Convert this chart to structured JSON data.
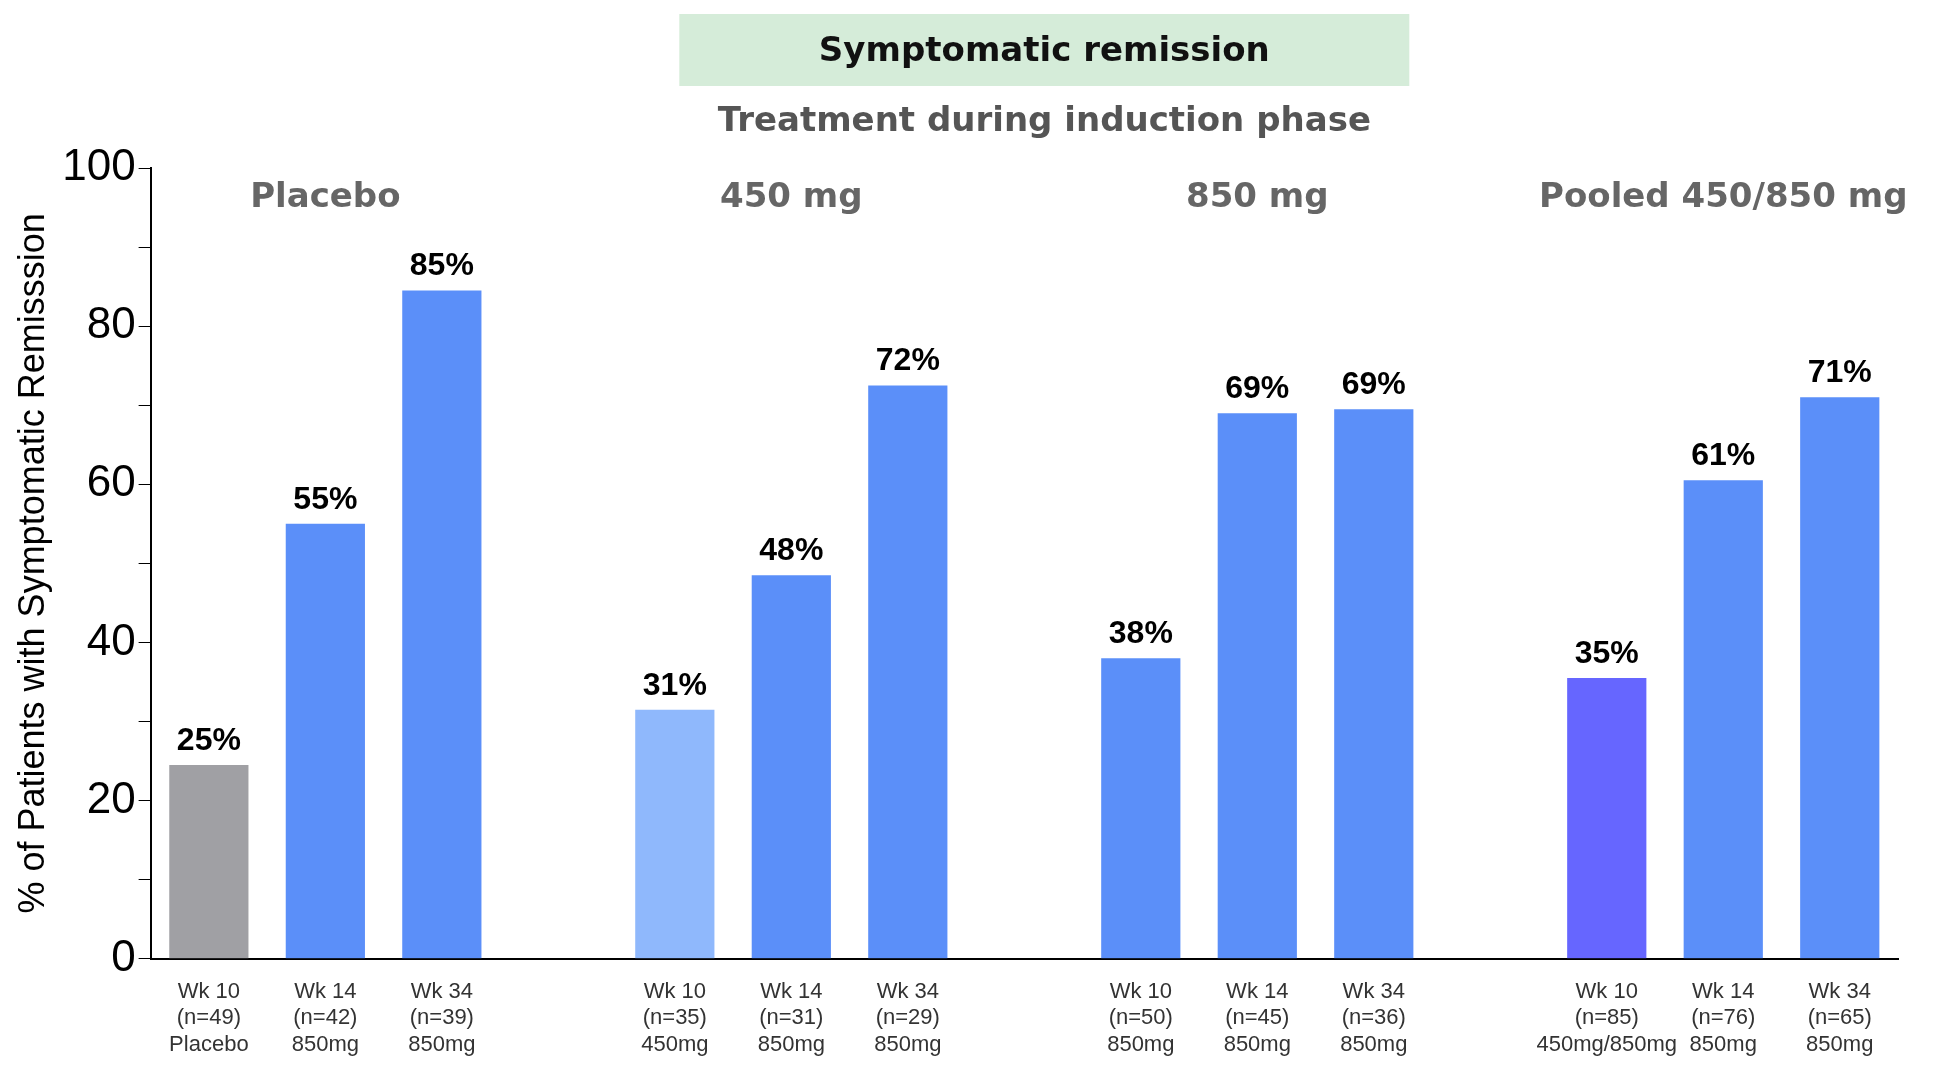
{
  "chart_data": {
    "type": "bar",
    "title": "Symptomatic remission",
    "subtitle": "Treatment during induction phase",
    "ylabel": "% of Patients with Symptomatic Remisssion",
    "annotations": [
      "Placebo",
      "450 mg",
      "850 mg",
      "Pooled 450/850 mg"
    ],
    "categories": [
      "Wk 10\n(n=49)\nPlacebo",
      "Wk 14\n(n=42)\n850mg",
      "Wk 34\n(n=39)\n850mg",
      null,
      "Wk 10\n(n=35)\n450mg",
      "Wk 14\n(n=31)\n850mg",
      "Wk 34\n(n=29)\n850mg",
      null,
      "Wk 10\n(n=50)\n850mg",
      "Wk 14\n(n=45)\n850mg",
      "Wk 34\n(n=36)\n850mg",
      null,
      "Wk 10\n(n=85)\n450mg/850mg",
      "Wk 14\n(n=76)\n850mg",
      "Wk 34\n(n=65)\n850mg"
    ],
    "values": [
      24.5,
      55,
      84.5,
      null,
      31.5,
      48.5,
      72.5,
      null,
      38,
      69,
      69.5,
      null,
      35.5,
      60.5,
      71
    ],
    "value_labels": [
      "25%",
      "55%",
      "85%",
      null,
      "31%",
      "48%",
      "72%",
      null,
      "38%",
      "69%",
      "69%",
      null,
      "35%",
      "61%",
      "71%"
    ],
    "colors": [
      "#a0a0a4",
      "#5b8ff9",
      "#5b8ff9",
      "#5b8ff9",
      "#8fb8fc",
      "#5b8ff9",
      "#5b8ff9",
      "#5b8ff9",
      "#5b8ff9",
      "#5b8ff9",
      "#5b8ff9",
      "#5b8ff9",
      "#6666ff",
      "#5b8ff9",
      "#5b8ff9"
    ],
    "ylim": [
      0,
      100
    ],
    "yticks": [
      0,
      {
        "value": 10,
        "label": null
      },
      20,
      {
        "value": 30,
        "label": null
      },
      40,
      {
        "value": 50,
        "label": null
      },
      60,
      {
        "value": 70,
        "label": null
      },
      80,
      {
        "value": 90,
        "label": null
      },
      100
    ],
    "grid": false,
    "legend": false
  }
}
